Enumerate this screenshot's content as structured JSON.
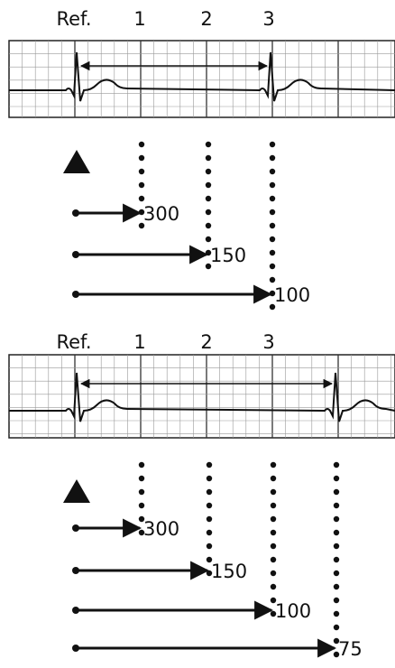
{
  "panels": [
    {
      "labels": [
        "Ref.",
        "1",
        "2",
        "3"
      ],
      "arrows": [
        "300",
        "150",
        "100"
      ]
    },
    {
      "labels": [
        "Ref.",
        "1",
        "2",
        "3"
      ],
      "arrows": [
        "300",
        "150",
        "100",
        "75"
      ]
    }
  ]
}
